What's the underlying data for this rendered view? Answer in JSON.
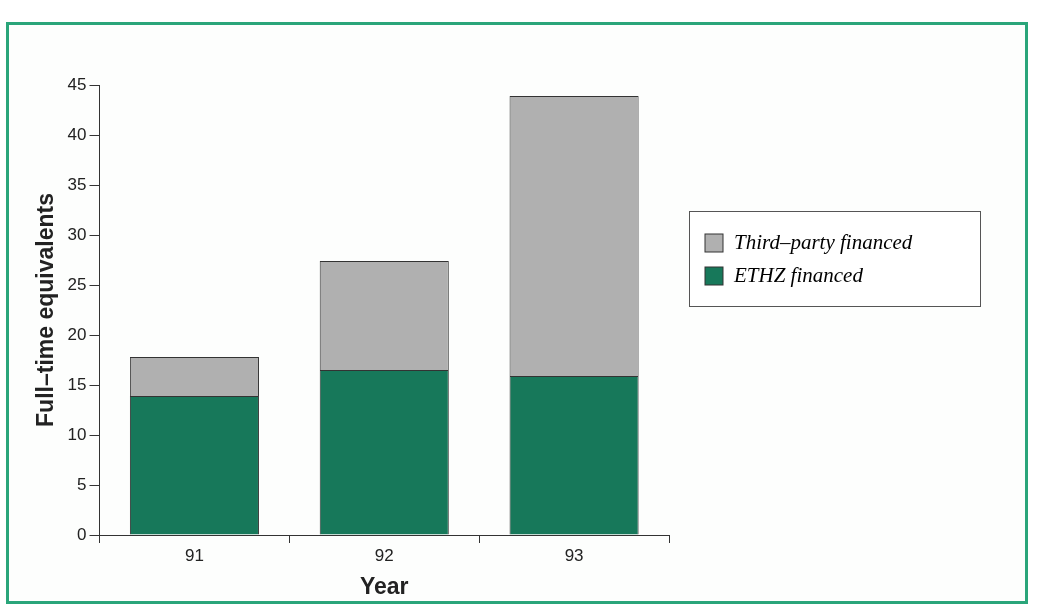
{
  "chart_data": {
    "type": "bar",
    "stacked": true,
    "xlabel": "Year",
    "ylabel": "Full–time equivalents",
    "categories": [
      "91",
      "92",
      "93"
    ],
    "series": [
      {
        "name": "ETHZ financed",
        "color": "#17785a",
        "values": [
          13.9,
          16.5,
          15.9
        ]
      },
      {
        "name": "Third–party financed",
        "color": "#b0b0b0",
        "values": [
          3.9,
          10.9,
          28.0
        ]
      }
    ],
    "ylim": [
      0,
      45
    ],
    "yticks": [
      0,
      5,
      10,
      15,
      20,
      25,
      30,
      35,
      40,
      45
    ],
    "grid": false,
    "legend": "right"
  }
}
